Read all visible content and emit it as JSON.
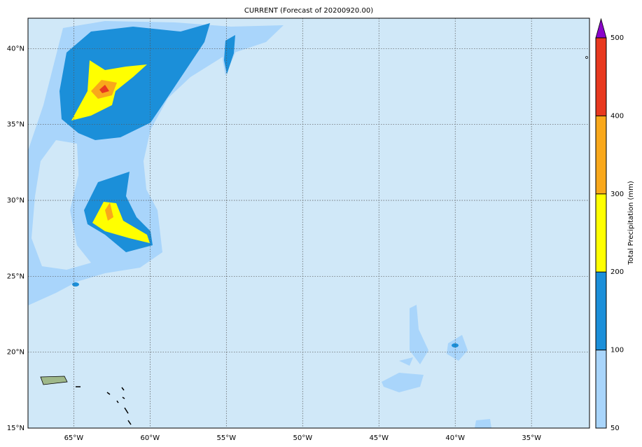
{
  "map": {
    "title": "CURRENT (Forecast of 20200920.00)",
    "lon_range": [
      -68,
      -31.2
    ],
    "lat_range": [
      15,
      42
    ],
    "lon_ticks": [
      {
        "value": -65,
        "label": "65°W"
      },
      {
        "value": -60,
        "label": "60°W"
      },
      {
        "value": -55,
        "label": "55°W"
      },
      {
        "value": -50,
        "label": "50°W"
      },
      {
        "value": -45,
        "label": "45°W"
      },
      {
        "value": -40,
        "label": "40°W"
      },
      {
        "value": -35,
        "label": "35°W"
      }
    ],
    "lat_ticks": [
      {
        "value": 15,
        "label": "15°N"
      },
      {
        "value": 20,
        "label": "20°N"
      },
      {
        "value": 25,
        "label": "25°N"
      },
      {
        "value": 30,
        "label": "30°N"
      },
      {
        "value": 35,
        "label": "35°N"
      },
      {
        "value": 40,
        "label": "40°N"
      }
    ],
    "colorbar": {
      "label": "Total Precipitation (mm)",
      "levels": [
        50,
        100,
        200,
        300,
        400,
        500
      ],
      "colors": [
        "#a9d5fb",
        "#1b8fd9",
        "#ffff00",
        "#f9a81b",
        "#e8391f"
      ],
      "extend_color": "#8a04c9"
    }
  }
}
